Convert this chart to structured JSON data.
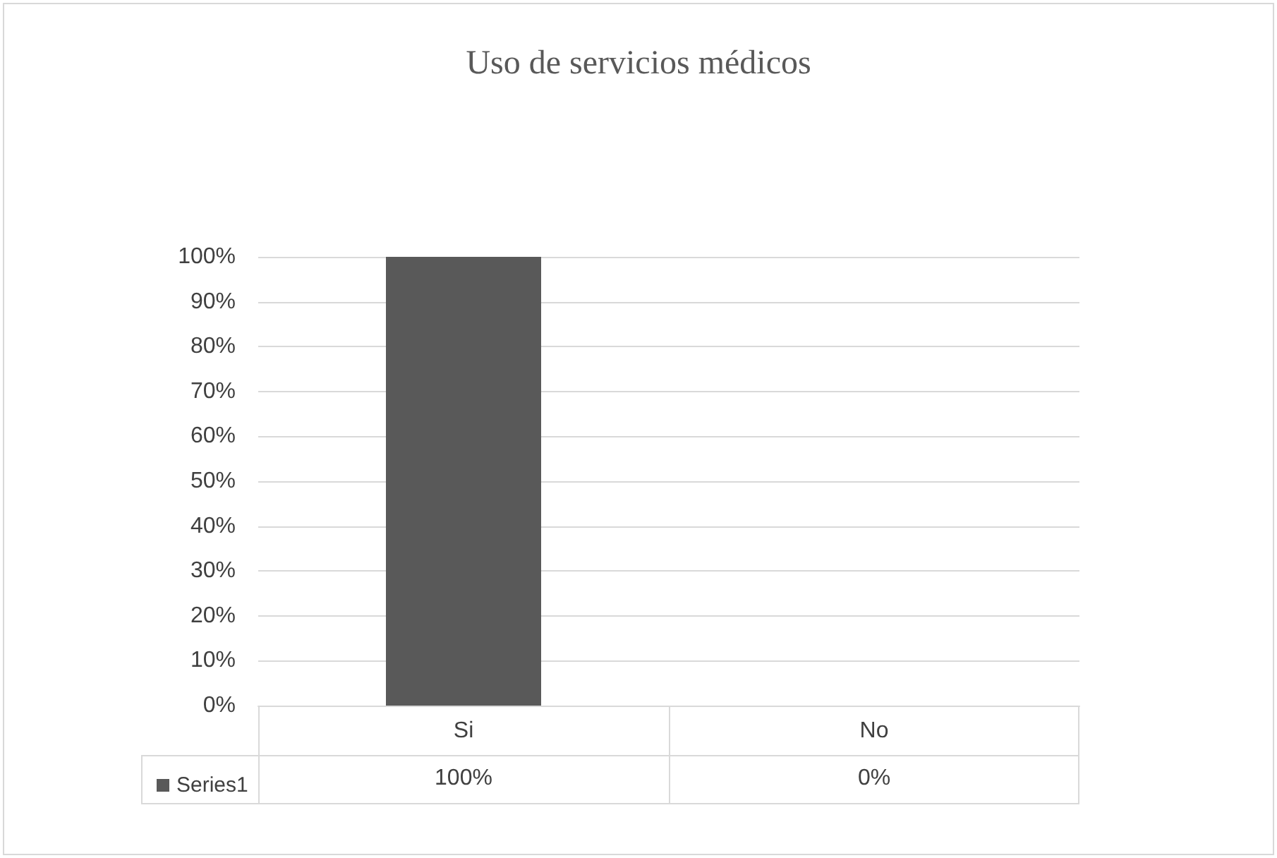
{
  "chart_data": {
    "type": "bar",
    "title": "Uso de servicios médicos",
    "categories": [
      "Si",
      "No"
    ],
    "series": [
      {
        "name": "Series1",
        "color": "#595959",
        "values": [
          100,
          0
        ],
        "value_labels": [
          "100%",
          "0%"
        ]
      }
    ],
    "ylim": [
      0,
      100
    ],
    "yticks": [
      {
        "value": 0,
        "label": "0%"
      },
      {
        "value": 10,
        "label": "10%"
      },
      {
        "value": 20,
        "label": "20%"
      },
      {
        "value": 30,
        "label": "30%"
      },
      {
        "value": 40,
        "label": "40%"
      },
      {
        "value": 50,
        "label": "50%"
      },
      {
        "value": 60,
        "label": "60%"
      },
      {
        "value": 70,
        "label": "70%"
      },
      {
        "value": 80,
        "label": "80%"
      },
      {
        "value": 90,
        "label": "90%"
      },
      {
        "value": 100,
        "label": "100%"
      }
    ],
    "grid": "y",
    "legend": "bottom left"
  }
}
